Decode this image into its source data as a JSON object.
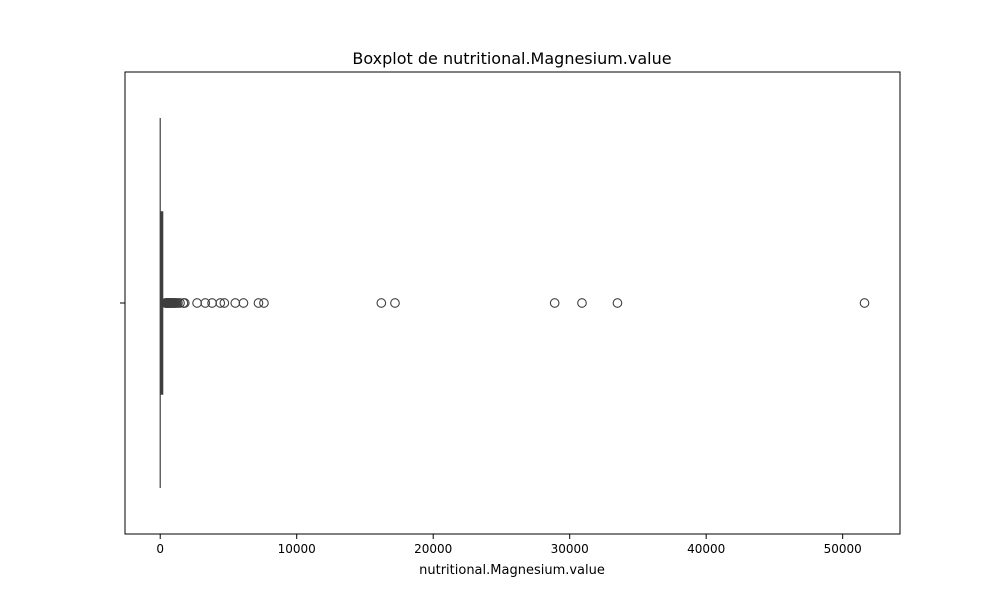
{
  "chart_data": {
    "type": "boxplot",
    "orientation": "horizontal",
    "title": "Boxplot de nutritional.Magnesium.value",
    "xlabel": "nutritional.Magnesium.value",
    "ylabel": "",
    "xlim": [
      -2580,
      54200
    ],
    "xticks": [
      0,
      10000,
      20000,
      30000,
      40000,
      50000
    ],
    "xtick_labels": [
      "0",
      "10000",
      "20000",
      "30000",
      "40000",
      "50000"
    ],
    "grid": false,
    "box": {
      "min": 0,
      "q1": 40,
      "median": 90,
      "q3": 170,
      "whisker_low": 0,
      "whisker_high": 370
    },
    "outliers": [
      380,
      420,
      460,
      500,
      540,
      580,
      620,
      660,
      700,
      750,
      800,
      850,
      900,
      950,
      1000,
      1050,
      1100,
      1200,
      1300,
      1450,
      1700,
      1800,
      2700,
      3300,
      3800,
      4400,
      4700,
      5500,
      6100,
      7200,
      7600,
      16200,
      17200,
      28900,
      30900,
      33500,
      51600
    ],
    "colors": {
      "box_edge": "#3f3f3f",
      "box_fill": "#1f77b4",
      "outlier_edge": "#3f3f3f",
      "frame": "#000000"
    }
  }
}
